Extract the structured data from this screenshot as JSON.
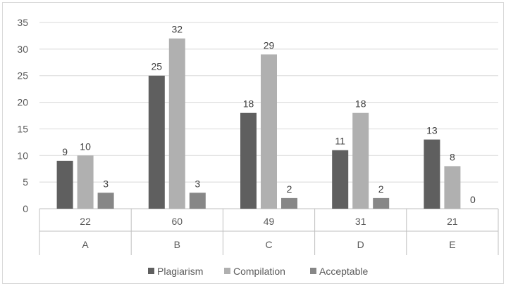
{
  "chart_data": {
    "type": "bar",
    "categories": [
      [
        "22",
        "A"
      ],
      [
        "60",
        "B"
      ],
      [
        "49",
        "C"
      ],
      [
        "31",
        "D"
      ],
      [
        "21",
        "E"
      ]
    ],
    "series": [
      {
        "name": "Plagiarism",
        "color": "#5f5f5f",
        "values": [
          9,
          25,
          18,
          11,
          13
        ]
      },
      {
        "name": "Compilation",
        "color": "#b0b0b0",
        "values": [
          10,
          32,
          29,
          18,
          8
        ]
      },
      {
        "name": "Acceptable",
        "color": "#878787",
        "values": [
          3,
          3,
          2,
          2,
          0
        ]
      }
    ],
    "ylim": [
      0,
      35
    ],
    "yticks": [
      0,
      5,
      10,
      15,
      20,
      25,
      30,
      35
    ],
    "grid": true,
    "legend_position": "bottom",
    "title": "",
    "xlabel": "",
    "ylabel": ""
  }
}
